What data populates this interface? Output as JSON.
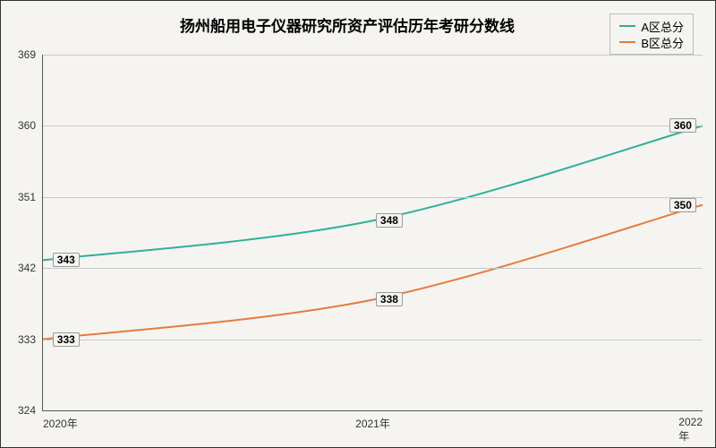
{
  "chart": {
    "type": "line",
    "title": "扬州船用电子仪器研究所资产评估历年考研分数线",
    "title_fontsize": 17,
    "background_color": "#f5f4f1",
    "border_color": "#333333",
    "axis_color": "#555555",
    "grid_color": "#c9c9c9",
    "tick_fontsize": 12,
    "x": {
      "categories": [
        "2020年",
        "2021年",
        "2022年"
      ]
    },
    "y": {
      "min": 324,
      "max": 369,
      "ticks": [
        324,
        333,
        342,
        351,
        360,
        369
      ],
      "tick_step": 9
    },
    "series": [
      {
        "name": "A区总分",
        "color": "#2fb09a",
        "line_width": 2,
        "values": [
          343,
          348,
          360
        ]
      },
      {
        "name": "B区总分",
        "color": "#e57b3a",
        "line_width": 2,
        "values": [
          333,
          338,
          350
        ]
      }
    ],
    "legend": {
      "position": "top-right",
      "border_color": "#bbbbbb",
      "fontsize": 13
    },
    "data_label": {
      "fontsize": 12,
      "border_color": "#999999",
      "background": "#f5f4f1"
    }
  }
}
